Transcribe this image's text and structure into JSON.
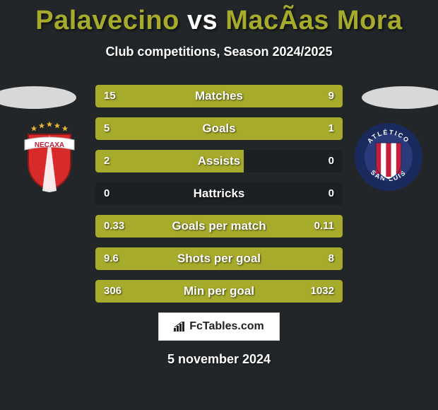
{
  "title": {
    "player1": "Palavecino",
    "vs": "vs",
    "player2": "MacÃ­as Mora",
    "color_p1": "#a6ab2b",
    "color_vs": "#ffffff",
    "color_p2": "#a6ab2b"
  },
  "subtitle": "Club competitions, Season 2024/2025",
  "ellipse_color": "#d8d8d8",
  "crest_left": {
    "name": "necaxa-crest",
    "shield": "#d82a2a",
    "stripe": "#ffffff",
    "banner": "#ffffff",
    "text": "NECAXA",
    "text_color": "#c41e3a",
    "stars": "#e8b23a"
  },
  "crest_right": {
    "name": "atletico-san-luis-crest",
    "ring": "#1a2a5c",
    "inner": "#2a3a7a",
    "stripes": [
      "#c41e3a",
      "#ffffff",
      "#c41e3a",
      "#ffffff",
      "#c41e3a"
    ],
    "text_top": "ATLÉTICO",
    "text_bottom": "SAN LUIS",
    "text_color": "#ffffff"
  },
  "bars": {
    "bar_bg": "rgba(0,0,0,0.15)",
    "fill_left_color": "#a6ab2b",
    "fill_right_color": "#a6ab2b",
    "rows": [
      {
        "label": "Matches",
        "left_val": "15",
        "right_val": "9",
        "left_w": 0.625,
        "right_w": 0.375
      },
      {
        "label": "Goals",
        "left_val": "5",
        "right_val": "1",
        "left_w": 0.76,
        "right_w": 0.24
      },
      {
        "label": "Assists",
        "left_val": "2",
        "right_val": "0",
        "left_w": 0.6,
        "right_w": 0.0
      },
      {
        "label": "Hattricks",
        "left_val": "0",
        "right_val": "0",
        "left_w": 0.0,
        "right_w": 0.0
      },
      {
        "label": "Goals per match",
        "left_val": "0.33",
        "right_val": "0.11",
        "left_w": 0.75,
        "right_w": 0.25
      },
      {
        "label": "Shots per goal",
        "left_val": "9.6",
        "right_val": "8",
        "left_w": 0.545,
        "right_w": 0.455
      },
      {
        "label": "Min per goal",
        "left_val": "306",
        "right_val": "1032",
        "left_w": 0.23,
        "right_w": 0.77
      }
    ]
  },
  "footer": {
    "site": "FcTables.com",
    "icon_name": "bar-chart-icon"
  },
  "date": "5 november 2024"
}
